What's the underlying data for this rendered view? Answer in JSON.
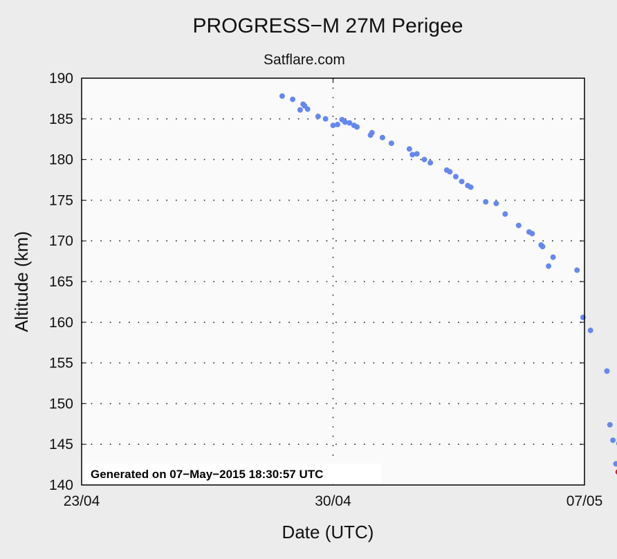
{
  "chart_data": {
    "type": "scatter",
    "title": "PROGRESS−M 27M Perigee",
    "subtitle": "Satflare.com",
    "xlabel": "Date (UTC)",
    "ylabel": "Altitude (km)",
    "x_ticks": [
      "23/04",
      "30/04",
      "07/05"
    ],
    "xlim": [
      "2015-04-23",
      "2015-05-07"
    ],
    "ylim": [
      140,
      190
    ],
    "y_ticks": [
      140,
      145,
      150,
      155,
      160,
      165,
      170,
      175,
      180,
      185,
      190
    ],
    "grid": true,
    "annotation": "Generated on 07−May−2015 18:30:57 UTC",
    "colors": {
      "series": "#6688ee",
      "latest": "#ee1111",
      "plot_bg": "#fafafa",
      "page_bg": "#ececec"
    },
    "series": [
      {
        "points": [
          [
            "2015-04-28 14:00",
            187.8
          ],
          [
            "2015-04-28 21:00",
            187.4
          ],
          [
            "2015-04-29 02:00",
            186.1
          ],
          [
            "2015-04-29 04:00",
            186.8
          ],
          [
            "2015-04-29 05:00",
            186.6
          ],
          [
            "2015-04-29 07:00",
            186.2
          ],
          [
            "2015-04-29 14:00",
            185.3
          ],
          [
            "2015-04-29 19:00",
            185.0
          ],
          [
            "2015-04-30 00:00",
            184.2
          ],
          [
            "2015-04-30 03:00",
            184.3
          ],
          [
            "2015-04-30 06:00",
            184.9
          ],
          [
            "2015-04-30 08:00",
            184.6
          ],
          [
            "2015-04-30 11:00",
            184.5
          ],
          [
            "2015-04-30 14:00",
            184.2
          ],
          [
            "2015-04-30 16:00",
            184.0
          ],
          [
            "2015-05-01 01:00",
            183.0
          ],
          [
            "2015-05-01 02:00",
            183.3
          ],
          [
            "2015-05-01 09:00",
            182.7
          ],
          [
            "2015-05-01 15:00",
            182.0
          ],
          [
            "2015-05-02 03:00",
            181.3
          ],
          [
            "2015-05-02 05:00",
            180.6
          ],
          [
            "2015-05-02 08:00",
            180.7
          ],
          [
            "2015-05-02 13:00",
            180.0
          ],
          [
            "2015-05-02 17:00",
            179.6
          ],
          [
            "2015-05-03 04:00",
            178.7
          ],
          [
            "2015-05-03 06:00",
            178.5
          ],
          [
            "2015-05-03 10:00",
            177.9
          ],
          [
            "2015-05-03 14:00",
            177.3
          ],
          [
            "2015-05-03 18:00",
            176.8
          ],
          [
            "2015-05-03 20:00",
            176.6
          ],
          [
            "2015-05-04 06:00",
            174.8
          ],
          [
            "2015-05-04 13:00",
            174.6
          ],
          [
            "2015-05-04 19:00",
            173.3
          ],
          [
            "2015-05-05 04:00",
            171.9
          ],
          [
            "2015-05-05 11:00",
            171.1
          ],
          [
            "2015-05-05 13:00",
            170.9
          ],
          [
            "2015-05-05 19:00",
            169.5
          ],
          [
            "2015-05-05 20:00",
            169.3
          ],
          [
            "2015-05-06 00:00",
            166.9
          ],
          [
            "2015-05-06 03:00",
            168.0
          ],
          [
            "2015-05-06 19:00",
            166.4
          ],
          [
            "2015-05-06 23:00",
            160.6
          ],
          [
            "2015-05-07 04:00",
            159.0
          ],
          [
            "2015-05-07 15:00",
            154.0
          ],
          [
            "2015-05-07 17:00",
            147.4
          ],
          [
            "2015-05-07 19:00",
            145.5
          ],
          [
            "2015-05-07 21:00",
            142.6
          ],
          [
            "2015-05-07 23:00",
            145.1
          ]
        ]
      },
      {
        "highlight": true,
        "points": [
          [
            "2015-05-07 22:30",
            141.6
          ]
        ]
      }
    ]
  }
}
